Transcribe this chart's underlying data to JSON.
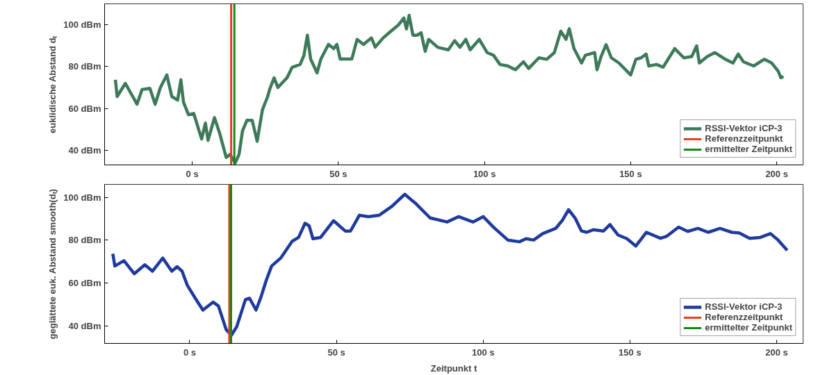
{
  "chart_data": [
    {
      "type": "line",
      "ylabel": "euklidische Abstand dₜ",
      "xlim": [
        -30,
        209
      ],
      "ylim": [
        33,
        110
      ],
      "xticks": [
        {
          "value": 0,
          "label": "0 s"
        },
        {
          "value": 50,
          "label": "50 s"
        },
        {
          "value": 100,
          "label": "100 s"
        },
        {
          "value": 150,
          "label": "150 s"
        },
        {
          "value": 200,
          "label": "200 s"
        }
      ],
      "yticks": [
        {
          "value": 40,
          "label": "40 dBm"
        },
        {
          "value": 60,
          "label": "60 dBm"
        },
        {
          "value": 80,
          "label": "80 dBm"
        },
        {
          "value": 100,
          "label": "100 dBm"
        }
      ],
      "grid": false,
      "legend": "bottom right",
      "marker": "none",
      "line_style": "solid",
      "series": [
        {
          "name": "RSSI-Vektor iCP-3",
          "color": "#3d7a5a",
          "x": [
            -26.3,
            -25.7,
            -22.9,
            -18.9,
            -17.2,
            -14.5,
            -12.7,
            -10.9,
            -8.7,
            -7,
            -5,
            -3.9,
            -3,
            -1.3,
            0.5,
            3.2,
            4.5,
            5.4,
            7.6,
            9.4,
            11.6,
            12.9,
            14.7,
            16,
            17.2,
            18.7,
            20.5,
            22.2,
            24,
            25.8,
            26.6,
            28,
            29.3,
            32.4,
            34.2,
            36.9,
            38.2,
            39.4,
            40.5,
            42.7,
            44,
            46.6,
            48.4,
            49.5,
            50.6,
            54.6,
            56.4,
            58.6,
            61.3,
            62.6,
            65.3,
            67.9,
            70.6,
            72.4,
            73.3,
            74.2,
            75.5,
            77,
            78.3,
            79.7,
            80.9,
            84,
            87.6,
            89.8,
            91.6,
            93.6,
            95.1,
            98.2,
            100.9,
            103.1,
            105.3,
            108,
            110.6,
            113.3,
            115.1,
            118.6,
            121.3,
            123.9,
            126.1,
            127.9,
            129,
            130.6,
            133.2,
            134.5,
            137.7,
            138.5,
            139.9,
            141.6,
            143.4,
            146,
            150,
            151.8,
            153.6,
            155.3,
            156.2,
            158.9,
            161.1,
            165.1,
            168.2,
            170.9,
            172.6,
            173.5,
            176.2,
            178.8,
            182.4,
            185,
            186.8,
            188.6,
            192.1,
            195.7,
            198.3,
            200.5,
            201.4,
            202.3
          ],
          "values": [
            73.7,
            65.7,
            72,
            62,
            69,
            69.6,
            62,
            70,
            76,
            65.7,
            64,
            73.7,
            63,
            57,
            57.6,
            45.4,
            53,
            44.7,
            55.6,
            48,
            36.6,
            38,
            34,
            38,
            49.3,
            54.3,
            54.3,
            44.3,
            59.3,
            65.7,
            69.6,
            74.6,
            70,
            74.6,
            79.7,
            81,
            85.3,
            95,
            83.6,
            77,
            83.6,
            90.6,
            88.6,
            90.6,
            83.6,
            83.6,
            93,
            90.6,
            93.7,
            89.3,
            93.7,
            96.8,
            100,
            103.2,
            98,
            104.5,
            95,
            95,
            96.2,
            87.3,
            93,
            89.2,
            88,
            92.4,
            89.2,
            93,
            88,
            93,
            86.7,
            85.4,
            81,
            80.3,
            78.5,
            82.3,
            79.1,
            84.2,
            83.5,
            86.7,
            96.9,
            93,
            98.1,
            88.7,
            81.7,
            85.4,
            86.7,
            78.5,
            84.8,
            90.5,
            84.2,
            81.7,
            76,
            83.5,
            84.2,
            86,
            80.3,
            81,
            79.7,
            88.6,
            84.2,
            84.8,
            89.9,
            81.7,
            84.8,
            86.7,
            83.5,
            81.7,
            86,
            82.3,
            80.3,
            83.5,
            81.7,
            77.8,
            74.7,
            75.3
          ]
        },
        {
          "name": "Referenzzeitpunkt",
          "color": "#e8401c",
          "x": [
            13.3,
            13.3
          ],
          "values": [
            33,
            110
          ]
        },
        {
          "name": "ermittelter Zeitpunkt",
          "color": "#138a13",
          "x": [
            14.4,
            14.4
          ],
          "values": [
            33,
            110
          ]
        }
      ]
    },
    {
      "type": "line",
      "xlabel": "Zeitpunkt t",
      "ylabel": "geglättete euk. Abstand smooth(dₜ)",
      "xlim": [
        -29,
        209
      ],
      "ylim": [
        32,
        106
      ],
      "xticks": [
        {
          "value": 0,
          "label": "0 s"
        },
        {
          "value": 50,
          "label": "50 s"
        },
        {
          "value": 100,
          "label": "100 s"
        },
        {
          "value": 150,
          "label": "150 s"
        },
        {
          "value": 200,
          "label": "200 s"
        }
      ],
      "yticks": [
        {
          "value": 40,
          "label": "40 dBm"
        },
        {
          "value": 60,
          "label": "60 dBm"
        },
        {
          "value": 80,
          "label": "80 dBm"
        },
        {
          "value": 100,
          "label": "100 dBm"
        }
      ],
      "grid": false,
      "legend": "bottom right",
      "marker": "none",
      "line_style": "solid",
      "series": [
        {
          "name": "RSSI-Vektor iCP-3",
          "color": "#1f3a9e",
          "x": [
            -26.2,
            -25.5,
            -22.4,
            -18.9,
            -15.3,
            -12.7,
            -9.2,
            -6.1,
            -4.3,
            -2.6,
            -0.8,
            1.9,
            4.5,
            8,
            9.8,
            12.4,
            14.2,
            16,
            19,
            20.4,
            22.6,
            24.3,
            26.1,
            27.9,
            31,
            34.9,
            37.1,
            39.3,
            40.7,
            42,
            44.6,
            49,
            53,
            54.8,
            57.8,
            60.9,
            64.5,
            68.9,
            73.3,
            75.5,
            77.1,
            81.9,
            87.7,
            91.6,
            96.5,
            100,
            103.5,
            108.4,
            112.4,
            114.6,
            117.2,
            120.3,
            124.7,
            126.9,
            129.1,
            131.3,
            133.5,
            135.3,
            137.5,
            141,
            143.2,
            145.9,
            149,
            152,
            155.6,
            160.4,
            162.6,
            166.6,
            169.7,
            173.2,
            176.7,
            180.7,
            184.7,
            187.3,
            190.8,
            194.4,
            197.9,
            200.5,
            203.6
          ],
          "values": [
            73.7,
            68,
            70.5,
            64.4,
            68.6,
            65.6,
            71.7,
            65.6,
            67.7,
            65.6,
            59,
            53,
            47.5,
            51.2,
            49.4,
            38.5,
            35.8,
            39.7,
            52.4,
            53,
            47.5,
            53.6,
            61.4,
            68,
            71.7,
            79.5,
            81.3,
            87.9,
            86.7,
            80.7,
            81.3,
            89.1,
            84.3,
            84.3,
            91.6,
            91,
            91.6,
            95.8,
            101.4,
            98.8,
            97,
            90.4,
            88.5,
            91,
            88.5,
            91,
            86.1,
            80.1,
            79.3,
            80.7,
            80.1,
            83.1,
            85.5,
            89.1,
            94.2,
            90.4,
            84.3,
            83.7,
            84.9,
            84.3,
            87.3,
            82.5,
            80.7,
            77.3,
            83.7,
            80.9,
            81.9,
            86.1,
            84.1,
            85.5,
            83.7,
            85.5,
            83.7,
            83.4,
            80.9,
            81.3,
            83.1,
            80.1,
            75.3
          ]
        },
        {
          "name": "Referenzzeitpunkt",
          "color": "#e8401c",
          "x": [
            13.5,
            13.5
          ],
          "values": [
            32,
            106
          ]
        },
        {
          "name": "ermittelter Zeitpunkt",
          "color": "#138a13",
          "x": [
            14.1,
            14.1
          ],
          "values": [
            32,
            106
          ]
        }
      ]
    }
  ]
}
